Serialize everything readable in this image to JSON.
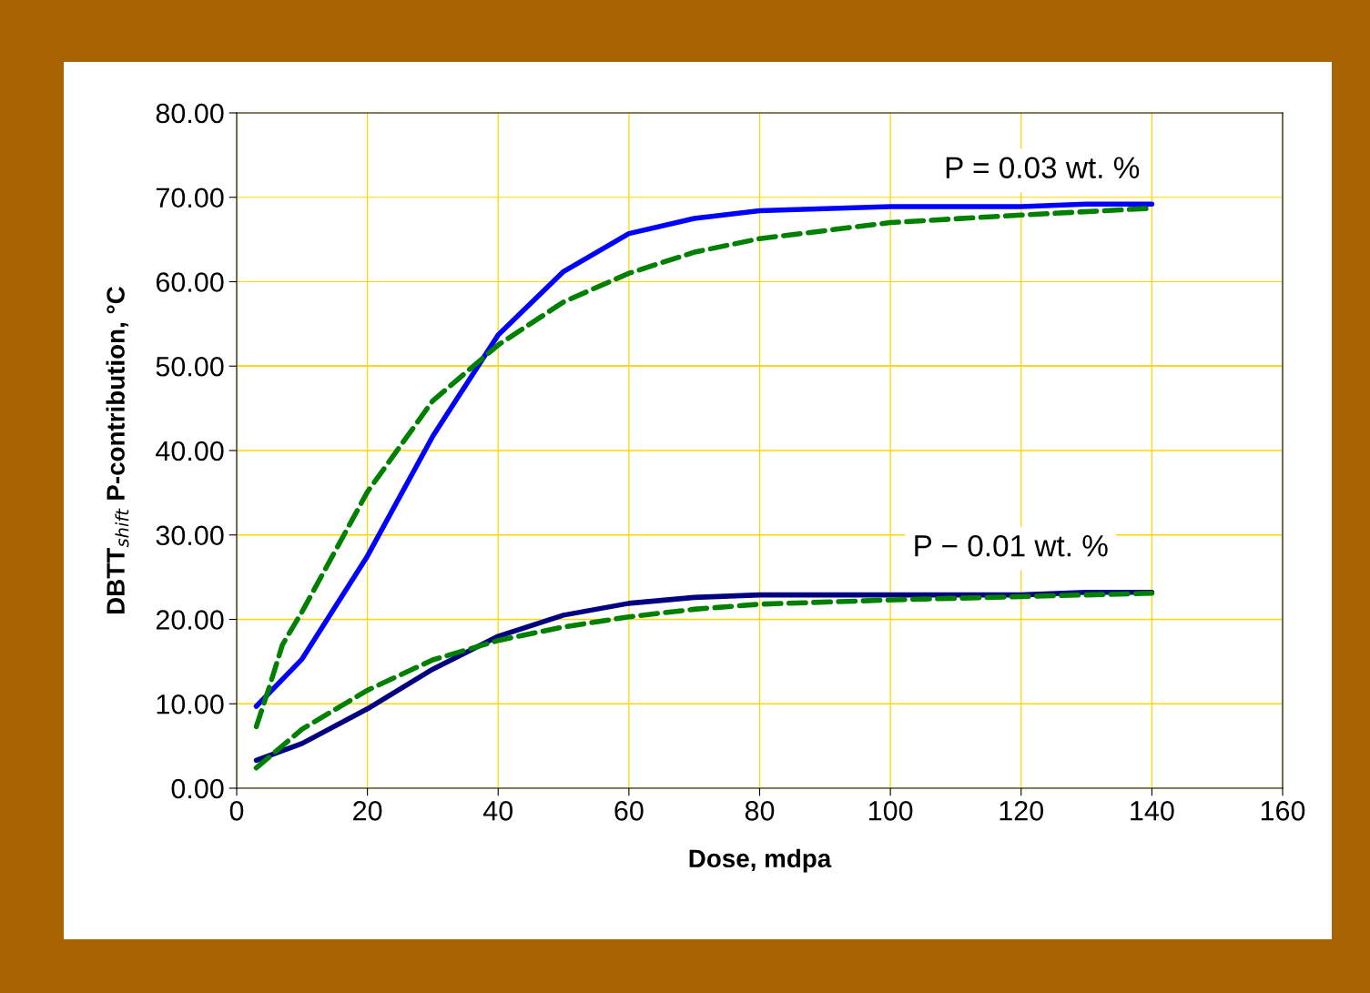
{
  "chart_data": {
    "type": "line",
    "xlabel": "Dose, mdpa",
    "ylabel": "DBTT$_{shift}$ P-contribution, °C",
    "xlim": [
      0,
      160
    ],
    "xticks": [
      0,
      20,
      40,
      60,
      80,
      100,
      120,
      140,
      160
    ],
    "ylim": [
      0,
      80
    ],
    "yticks": [
      {
        "value": 0,
        "label": "0.00"
      },
      {
        "value": 10,
        "label": "10.00"
      },
      {
        "value": 20,
        "label": "20.00"
      },
      {
        "value": 30,
        "label": "30.00"
      },
      {
        "value": 40,
        "label": "40.00"
      },
      {
        "value": 50,
        "label": "50.00"
      },
      {
        "value": 60,
        "label": "60.00"
      },
      {
        "value": 70,
        "label": "70.00"
      },
      {
        "value": 80,
        "label": "80.00"
      }
    ],
    "grid": true,
    "legend": false,
    "marker": "none",
    "series": [
      {
        "color": "#0000ff",
        "line_style": "solid",
        "x": [
          3,
          10,
          20,
          30,
          40,
          50,
          60,
          70,
          80,
          100,
          120,
          130,
          140
        ],
        "values": [
          9.7,
          15.3,
          27.5,
          41.7,
          53.7,
          61.2,
          65.7,
          67.5,
          68.4,
          68.9,
          68.9,
          69.2,
          69.2
        ]
      },
      {
        "color": "#008000",
        "line_style": "dashed",
        "x": [
          3,
          5,
          7,
          10,
          20,
          30,
          40,
          50,
          60,
          70,
          80,
          100,
          120,
          140
        ],
        "values": [
          7.3,
          12,
          17,
          20.9,
          35.1,
          45.9,
          52.5,
          57.6,
          61.0,
          63.5,
          65.1,
          67.0,
          67.9,
          68.7
        ]
      },
      {
        "color": "#000080",
        "line_style": "solid",
        "x": [
          3,
          10,
          20,
          30,
          40,
          50,
          60,
          70,
          80,
          100,
          120,
          130,
          140
        ],
        "values": [
          3.3,
          5.3,
          9.4,
          14.1,
          18.0,
          20.5,
          21.9,
          22.6,
          22.9,
          22.9,
          22.9,
          23.2,
          23.2
        ]
      },
      {
        "color": "#008000",
        "line_style": "dashed",
        "x": [
          3,
          10,
          20,
          30,
          40,
          50,
          60,
          70,
          80,
          100,
          120,
          140
        ],
        "values": [
          2.4,
          7.0,
          11.6,
          15.2,
          17.5,
          19.1,
          20.3,
          21.2,
          21.8,
          22.3,
          22.7,
          23.1
        ]
      }
    ],
    "ref_lines": [
      {
        "axis": "y",
        "value": 50,
        "color": "#ffa500",
        "line_style": "solid"
      }
    ],
    "annotations": [
      "P = 0.03 wt. %",
      "P − 0.01 wt. %"
    ]
  }
}
